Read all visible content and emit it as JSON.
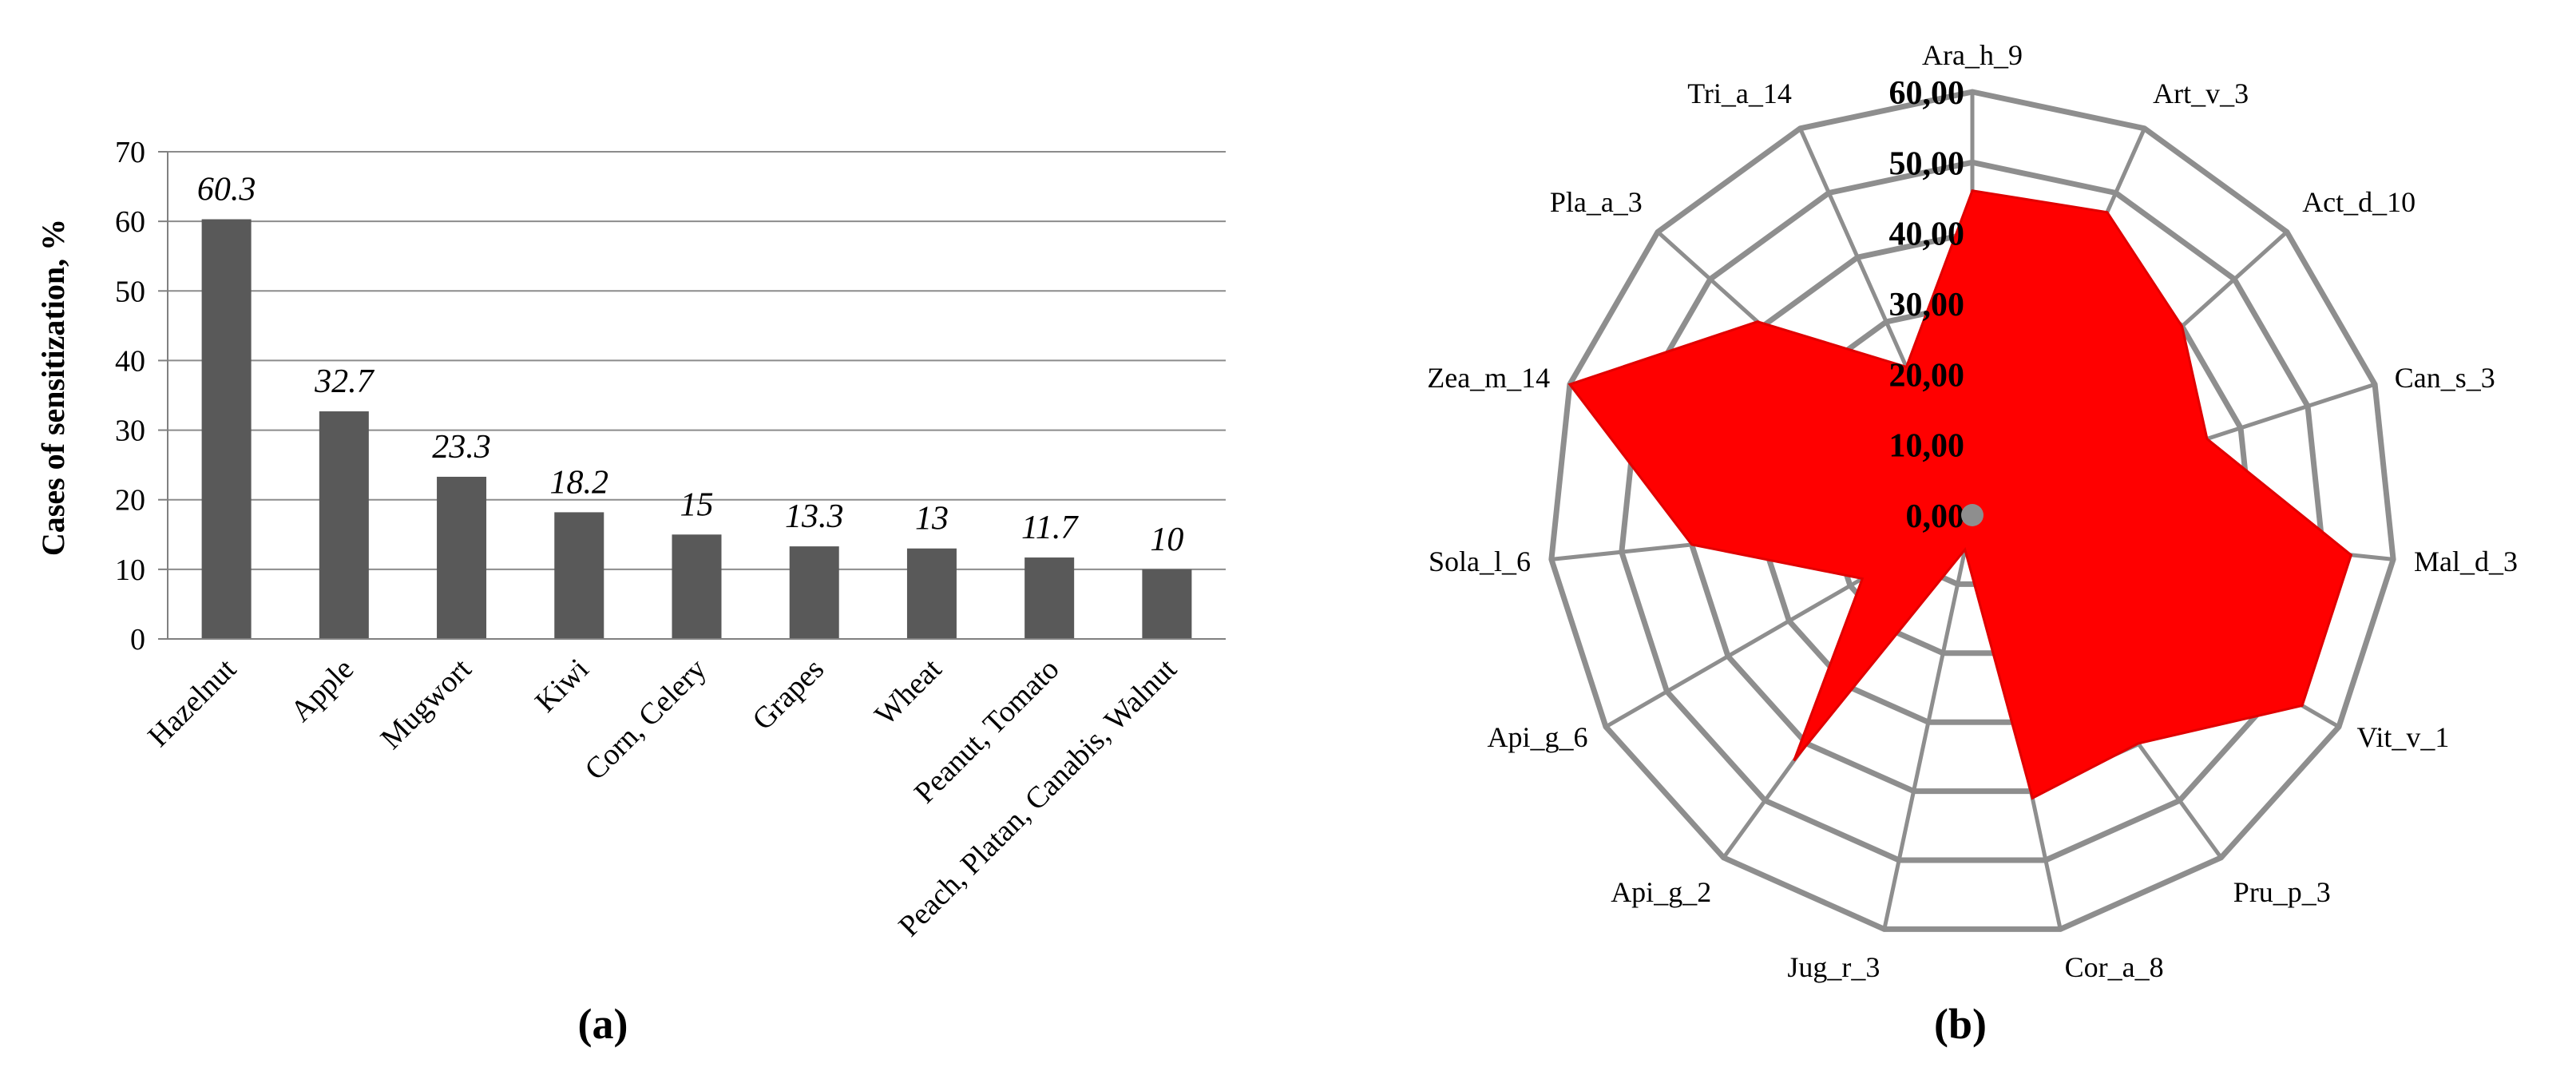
{
  "colors": {
    "bar": "#595959",
    "grid": "#8c8c8c",
    "radar_grid": "#8e8e8e",
    "radar_fill": "#ff0000",
    "radar_stroke": "#e00000"
  },
  "chart_data": [
    {
      "type": "bar",
      "panel_label": "(a)",
      "ylabel": "Cases of sensitization, %",
      "xlabel": "",
      "ylim": [
        0,
        70
      ],
      "yticks": [
        0,
        10,
        20,
        30,
        40,
        50,
        60,
        70
      ],
      "grid": true,
      "categories": [
        "Hazelnut",
        "Apple",
        "Mugwort",
        "Kiwi",
        "Corn, Celery",
        "Grapes",
        "Wheat",
        "Peanut, Tomato",
        "Peach, Platan, Canabis, Walnut"
      ],
      "values": [
        60.3,
        32.7,
        23.3,
        18.2,
        15,
        13.3,
        13,
        11.7,
        10
      ],
      "value_labels": [
        "60.3",
        "32.7",
        "23.3",
        "18.2",
        "15",
        "13.3",
        "13",
        "11.7",
        "10"
      ]
    },
    {
      "type": "radar",
      "panel_label": "(b)",
      "rlim": [
        0,
        60
      ],
      "rticks": [
        "0,00",
        "10,00",
        "20,00",
        "30,00",
        "40,00",
        "50,00",
        "60,00"
      ],
      "categories": [
        "Ara_h_9",
        "Art_v_3",
        "Act_d_10",
        "Can_s_3",
        "Mal_d_3",
        "Vit_v_1",
        "Pru_p_3",
        "Cor_a_8",
        "Jug_r_3",
        "Api_g_2",
        "Api_g_6",
        "Sola_l_6",
        "Zea_m_14",
        "Pla_a_3",
        "Tri_a_14"
      ],
      "values": [
        46,
        47,
        40,
        35,
        54,
        54,
        40,
        41,
        5,
        43,
        18,
        40,
        60,
        41,
        23
      ]
    }
  ]
}
